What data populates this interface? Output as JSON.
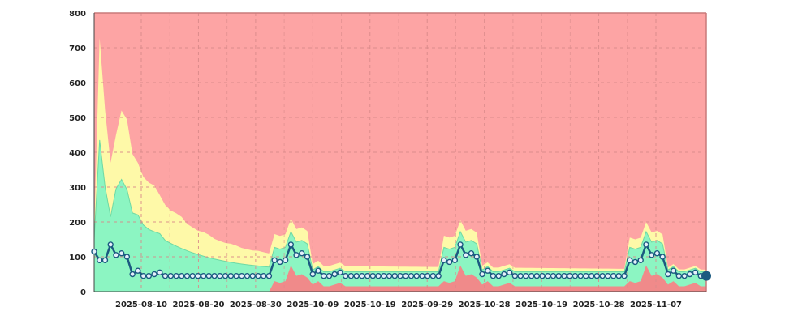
{
  "chart_data": {
    "type": "area",
    "ylim": [
      0,
      800
    ],
    "y_ticks": [
      0,
      100,
      200,
      300,
      400,
      500,
      600,
      700,
      800
    ],
    "x_tick_labels": [
      "2025-08-10",
      "2025-08-20",
      "2025-08-30",
      "2025-10-09",
      "2025-10-19",
      "2025-09-29",
      "2025-10-28",
      "2025-10-19",
      "2025-10-28",
      "2025-11-07"
    ],
    "grid": true,
    "legend": "none",
    "colors": {
      "red_zone": "#fda4a4",
      "yellow_band": "#fef9a8",
      "green_band": "#8cf5c2",
      "red_base": "#f08a8a",
      "line": "#1b5a80",
      "marker_fill": "#e6f0fb",
      "frame": "#c97a7a"
    },
    "series": [
      {
        "values": [
          115,
          90,
          90,
          135,
          105,
          110,
          100,
          50,
          60,
          45,
          45,
          50,
          55,
          45,
          45,
          45,
          45,
          45,
          45,
          45,
          45,
          45,
          45,
          45,
          45,
          45,
          45,
          45,
          45,
          45,
          45,
          45,
          45,
          90,
          85,
          90,
          135,
          105,
          110,
          100,
          50,
          60,
          45,
          45,
          50,
          55,
          45,
          45,
          45,
          45,
          45,
          45,
          45,
          45,
          45,
          45,
          45,
          45,
          45,
          45,
          45,
          45,
          45,
          45,
          90,
          85,
          90,
          135,
          105,
          110,
          100,
          50,
          60,
          45,
          45,
          50,
          55,
          45,
          45,
          45,
          45,
          45,
          45,
          45,
          45,
          45,
          45,
          45,
          45,
          45,
          45,
          45,
          45,
          45,
          45,
          45,
          45,
          45,
          90,
          85,
          90,
          135,
          105,
          110,
          100,
          50,
          60,
          45,
          45,
          50,
          55,
          45,
          45
        ]
      }
    ]
  }
}
